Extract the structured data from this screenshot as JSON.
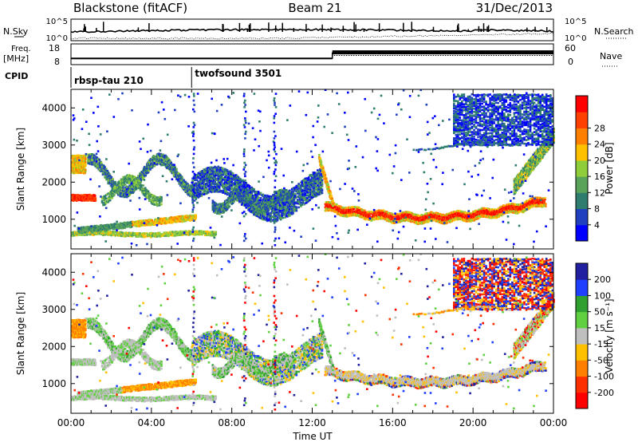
{
  "header": {
    "station": "Blackstone (fitACF)",
    "beam": "Beam 21",
    "date": "31/Dec/2013"
  },
  "left_labels": {
    "nsky": "N.Sky",
    "freq": "Freq.",
    "freq_unit": "[MHz]",
    "cpid": "CPID"
  },
  "right_labels": {
    "nsearch": "N.Search",
    "nave": "Nave"
  },
  "cpid_segments": [
    {
      "name": "rbsp-tau 210",
      "start_hour": 0
    },
    {
      "name": "twofsound 3501",
      "start_hour": 6
    }
  ],
  "colors": {
    "power": [
      "#0000ff",
      "#2040c0",
      "#2e7d6e",
      "#5aa35a",
      "#8fce3a",
      "#ffc000",
      "#ff8000",
      "#ff4000",
      "#ff0000"
    ],
    "velocity": [
      "#2020a0",
      "#2040ff",
      "#30a030",
      "#60d040",
      "#bfbfbf",
      "#ffc000",
      "#ff8000",
      "#ff3000",
      "#ff0000"
    ]
  },
  "chart_data": [
    {
      "type": "line",
      "name": "noise",
      "left_ticks": [
        "10^5",
        "10^0"
      ],
      "right_ticks": [
        "10^5",
        "10^0"
      ],
      "left_series_label": "N.Sky",
      "right_series_label": "N.Search"
    },
    {
      "type": "line",
      "name": "frequency",
      "left_ticks": [
        "18",
        "8"
      ],
      "right_ticks": [
        "60",
        "0"
      ],
      "freq_segments": [
        {
          "start_hour": 0,
          "end_hour": 13,
          "value_mhz": 10.5
        },
        {
          "start_hour": 13,
          "end_hour": 24,
          "value_mhz": 14.5
        }
      ]
    },
    {
      "type": "heatmap",
      "name": "power",
      "ylabel": "Slant Range [km]",
      "xlabel": "",
      "ylim": [
        200,
        4500
      ],
      "xlim": [
        0,
        24
      ],
      "yticks": [
        "1000",
        "2000",
        "3000",
        "4000"
      ],
      "colorbar_label": "Power [dB]",
      "colorbar_ticks": [
        "4",
        "8",
        "12",
        "16",
        "20",
        "24",
        "28"
      ]
    },
    {
      "type": "heatmap",
      "name": "velocity",
      "ylabel": "Slant Range [km]",
      "xlabel": "Time UT",
      "ylim": [
        200,
        4500
      ],
      "xlim": [
        0,
        24
      ],
      "yticks": [
        "1000",
        "2000",
        "3000",
        "4000"
      ],
      "xticks": [
        "00:00",
        "04:00",
        "08:00",
        "12:00",
        "16:00",
        "20:00",
        "00:00"
      ],
      "colorbar_label": "Velocity [m s⁻¹]",
      "colorbar_ticks": [
        "200",
        "100",
        "50",
        "15",
        "-15",
        "-50",
        "-100",
        "-200"
      ]
    }
  ]
}
